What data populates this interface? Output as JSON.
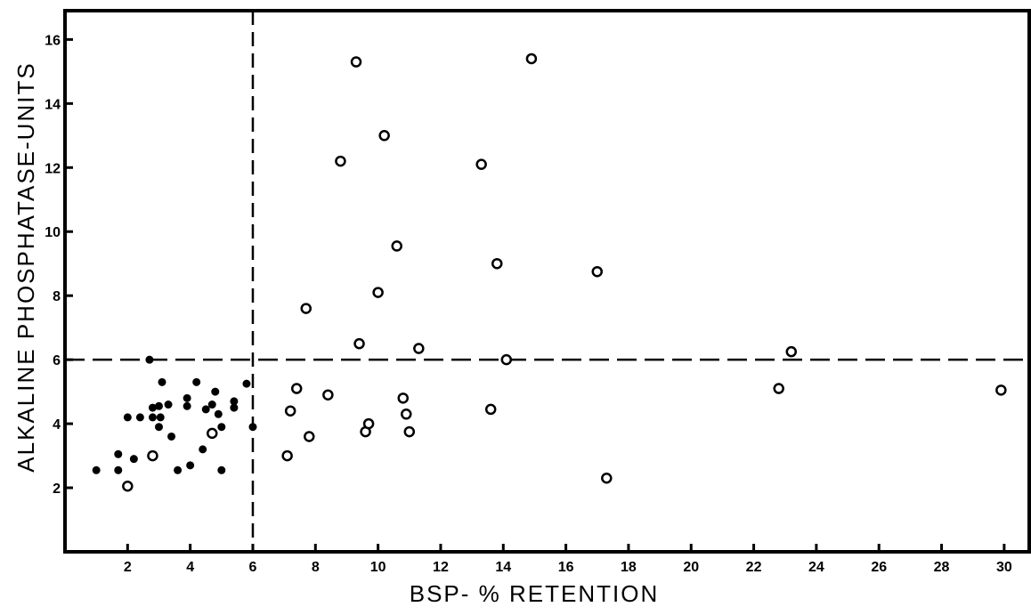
{
  "chart_data": {
    "type": "scatter",
    "xlabel": "BSP- % RETENTION",
    "ylabel": "ALKALINE PHOSPHATASE-UNITS",
    "xlim": [
      0,
      30.8
    ],
    "ylim": [
      0,
      16.9
    ],
    "x_ticks": [
      2,
      4,
      6,
      8,
      10,
      12,
      14,
      16,
      18,
      20,
      22,
      24,
      26,
      28,
      30
    ],
    "y_ticks": [
      2,
      4,
      6,
      8,
      10,
      12,
      14,
      16
    ],
    "reference_lines": {
      "vertical_x": 6,
      "horizontal_y": 6,
      "style": "dashed"
    },
    "grid": false,
    "legend": "none",
    "series": [
      {
        "marker": "filled-circle",
        "color": "#000000",
        "points": [
          [
            1.0,
            2.55
          ],
          [
            1.7,
            3.05
          ],
          [
            1.7,
            2.55
          ],
          [
            2.0,
            4.2
          ],
          [
            2.2,
            2.9
          ],
          [
            2.4,
            4.2
          ],
          [
            2.7,
            6.0
          ],
          [
            2.8,
            4.5
          ],
          [
            2.8,
            4.2
          ],
          [
            3.0,
            3.9
          ],
          [
            3.0,
            4.55
          ],
          [
            3.05,
            4.2
          ],
          [
            3.1,
            5.3
          ],
          [
            3.3,
            4.6
          ],
          [
            3.4,
            3.6
          ],
          [
            3.6,
            2.55
          ],
          [
            3.9,
            4.8
          ],
          [
            3.9,
            4.55
          ],
          [
            4.0,
            2.7
          ],
          [
            4.2,
            5.3
          ],
          [
            4.4,
            3.2
          ],
          [
            4.5,
            4.45
          ],
          [
            4.7,
            4.6
          ],
          [
            4.8,
            5.0
          ],
          [
            4.9,
            4.3
          ],
          [
            5.0,
            3.9
          ],
          [
            5.0,
            2.55
          ],
          [
            5.4,
            4.7
          ],
          [
            5.4,
            4.5
          ],
          [
            5.8,
            5.25
          ],
          [
            6.0,
            3.9
          ]
        ]
      },
      {
        "marker": "open-circle",
        "color": "#000000",
        "points": [
          [
            2.0,
            2.05
          ],
          [
            2.8,
            3.0
          ],
          [
            4.7,
            3.7
          ],
          [
            7.1,
            3.0
          ],
          [
            7.2,
            4.4
          ],
          [
            7.4,
            5.1
          ],
          [
            7.7,
            7.6
          ],
          [
            7.8,
            3.6
          ],
          [
            8.4,
            4.9
          ],
          [
            8.8,
            12.2
          ],
          [
            9.3,
            15.3
          ],
          [
            9.4,
            6.5
          ],
          [
            9.6,
            3.75
          ],
          [
            9.7,
            4.0
          ],
          [
            10.0,
            8.1
          ],
          [
            10.2,
            13.0
          ],
          [
            10.6,
            9.55
          ],
          [
            10.8,
            4.8
          ],
          [
            10.9,
            4.3
          ],
          [
            11.0,
            3.75
          ],
          [
            11.3,
            6.35
          ],
          [
            13.3,
            12.1
          ],
          [
            13.6,
            4.45
          ],
          [
            13.8,
            9.0
          ],
          [
            14.1,
            6.0
          ],
          [
            14.9,
            15.4
          ],
          [
            17.0,
            8.75
          ],
          [
            17.3,
            2.3
          ],
          [
            22.8,
            5.1
          ],
          [
            23.2,
            6.25
          ],
          [
            29.9,
            5.05
          ]
        ]
      }
    ]
  }
}
